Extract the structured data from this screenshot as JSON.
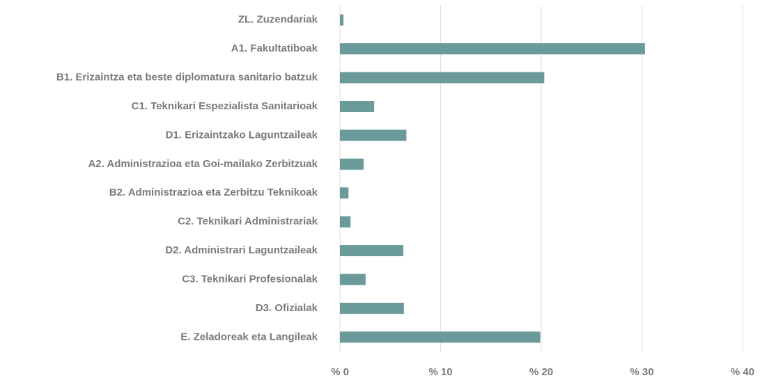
{
  "chart_data": {
    "type": "barh",
    "categories": [
      "ZL. Zuzendariak",
      "A1. Fakultatiboak",
      "B1. Erizaintza eta beste diplomatura sanitario batzuk",
      "C1. Teknikari Espezialista Sanitarioak",
      "D1. Erizaintzako Laguntzaileak",
      "A2. Administrazioa eta Goi-mailako Zerbitzuak",
      "B2. Administrazioa eta Zerbitzu Teknikoak",
      "C2. Teknikari Administrariak",
      "D2. Administrari Laguntzaileak",
      "C3. Teknikari Profesionalak",
      "D3. Ofizialak",
      "E. Zeladoreak eta Langileak"
    ],
    "values": [
      0.35,
      30.3,
      20.3,
      3.4,
      6.6,
      2.35,
      0.85,
      1.05,
      6.3,
      2.55,
      6.35,
      19.9
    ],
    "color": "#6a9a9a",
    "xlim": [
      0,
      40
    ],
    "xticks": [
      {
        "value": 0,
        "label": "% 0"
      },
      {
        "value": 10,
        "label": "% 10"
      },
      {
        "value": 20,
        "label": "% 20"
      },
      {
        "value": 30,
        "label": "% 30"
      },
      {
        "value": 40,
        "label": "% 40"
      }
    ],
    "grid": true
  }
}
